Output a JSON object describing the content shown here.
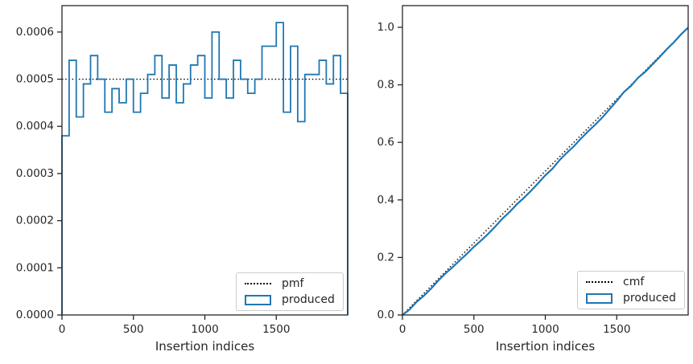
{
  "figure": {
    "background": "#ffffff"
  },
  "style": {
    "produced_blue": "#1f77b4",
    "reference_black": "#000000",
    "axis_color": "#262626",
    "text_color": "#262626",
    "legend_border": "#cccccc"
  },
  "chart_data": [
    {
      "id": "pmf-panel",
      "type": "bar",
      "subtype": "step-histogram",
      "title": "",
      "xlabel": "Insertion indices",
      "ylabel": "",
      "xlim": [
        0,
        2000
      ],
      "ylim": [
        0,
        0.000656
      ],
      "xticks": [
        0,
        500,
        1000,
        1500
      ],
      "xtick_labels": [
        "0",
        "500",
        "1000",
        "1500"
      ],
      "yticks": [
        0,
        0.0001,
        0.0002,
        0.0003,
        0.0004,
        0.0005,
        0.0006
      ],
      "ytick_labels": [
        "0.0000",
        "0.0001",
        "0.0002",
        "0.0003",
        "0.0004",
        "0.0005",
        "0.0006"
      ],
      "grid": false,
      "legend_position": "lower right",
      "legend": [
        {
          "label": "pmf",
          "style": "dotted-black-line"
        },
        {
          "label": "produced",
          "style": "blue-step-patch"
        }
      ],
      "pmf_line_value": 0.0005,
      "bin_start": 0,
      "bin_width": 50,
      "values": [
        0.00038,
        0.00054,
        0.00042,
        0.00049,
        0.00055,
        0.0005,
        0.00043,
        0.00048,
        0.00045,
        0.0005,
        0.00043,
        0.00047,
        0.00051,
        0.00055,
        0.00046,
        0.00053,
        0.00045,
        0.00049,
        0.00053,
        0.00055,
        0.00046,
        0.0006,
        0.0005,
        0.00046,
        0.00054,
        0.0005,
        0.00047,
        0.0005,
        0.00057,
        0.00057,
        0.00062,
        0.00043,
        0.00057,
        0.00041,
        0.00051,
        0.00051,
        0.00054,
        0.00049,
        0.00055,
        0.00047
      ]
    },
    {
      "id": "cmf-panel",
      "type": "line",
      "title": "",
      "xlabel": "Insertion indices",
      "ylabel": "",
      "xlim": [
        0,
        2000
      ],
      "ylim": [
        0,
        1.0754
      ],
      "xticks": [
        0,
        500,
        1000,
        1500
      ],
      "xtick_labels": [
        "0",
        "500",
        "1000",
        "1500"
      ],
      "yticks": [
        0,
        0.2,
        0.4,
        0.6,
        0.8,
        1.0
      ],
      "ytick_labels": [
        "0.0",
        "0.2",
        "0.4",
        "0.6",
        "0.8",
        "1.0"
      ],
      "grid": false,
      "legend_position": "lower right",
      "legend": [
        {
          "label": "cmf",
          "style": "dotted-black-line"
        },
        {
          "label": "produced",
          "style": "blue-step-patch"
        }
      ],
      "cmf_line": {
        "x": [
          0,
          2000
        ],
        "y": [
          0,
          1.0
        ]
      },
      "produced_x": [
        0,
        50,
        100,
        150,
        200,
        250,
        300,
        350,
        400,
        450,
        500,
        550,
        600,
        650,
        700,
        750,
        800,
        850,
        900,
        950,
        1000,
        1050,
        1100,
        1150,
        1200,
        1250,
        1300,
        1350,
        1400,
        1450,
        1500,
        1550,
        1600,
        1650,
        1700,
        1750,
        1800,
        1850,
        1900,
        1950,
        2000
      ],
      "produced_y": [
        0,
        0.019,
        0.046,
        0.067,
        0.0915,
        0.119,
        0.144,
        0.1655,
        0.1895,
        0.212,
        0.237,
        0.2585,
        0.282,
        0.3075,
        0.335,
        0.358,
        0.3845,
        0.407,
        0.4315,
        0.458,
        0.4855,
        0.5085,
        0.5385,
        0.5635,
        0.5865,
        0.6135,
        0.6385,
        0.662,
        0.687,
        0.7155,
        0.744,
        0.775,
        0.7965,
        0.825,
        0.8455,
        0.871,
        0.8965,
        0.9235,
        0.948,
        0.9755,
        0.999
      ]
    }
  ]
}
